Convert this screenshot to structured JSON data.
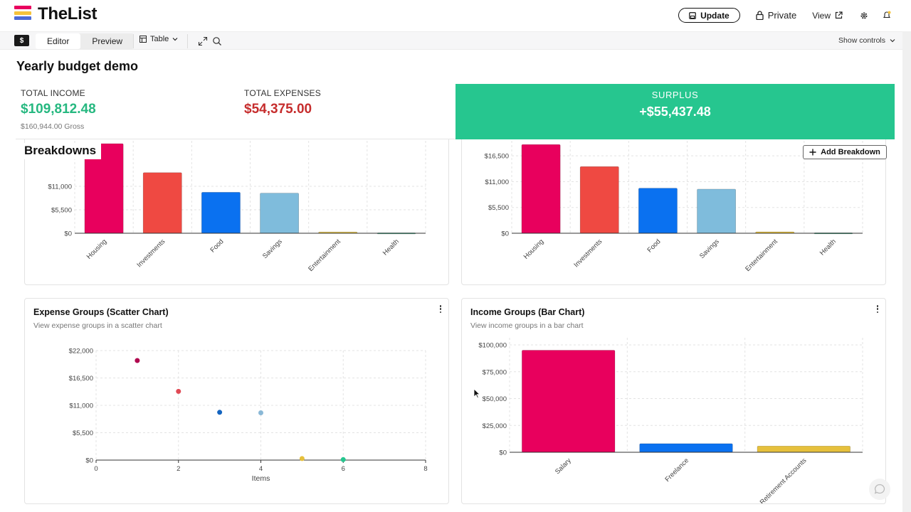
{
  "app": {
    "brand": "TheList",
    "logo_colors": [
      "#e9005e",
      "#f5c33b",
      "#4d6bd6"
    ]
  },
  "topbar": {
    "update_label": "Update",
    "private_label": "Private",
    "view_label": "View",
    "icons": [
      "save-icon",
      "lock-icon",
      "external-link-icon",
      "gear-icon",
      "bell-icon"
    ]
  },
  "toolbar": {
    "currency_badge": "$",
    "tabs": [
      {
        "label": "Editor",
        "active": true
      },
      {
        "label": "Preview",
        "active": false
      }
    ],
    "view_select": "Table",
    "show_controls": "Show controls"
  },
  "page": {
    "title": "Yearly budget demo"
  },
  "summary": {
    "income_label": "TOTAL INCOME",
    "income_value": "$109,812.48",
    "income_gross": "$160,944.00 Gross",
    "expenses_label": "TOTAL EXPENSES",
    "expenses_value": "$54,375.00",
    "surplus_label": "SURPLUS",
    "surplus_value": "+$55,437.48",
    "colors": {
      "income": "#26b880",
      "expenses": "#c62d2d",
      "surplus_bg": "#26c68f"
    }
  },
  "breakdowns": {
    "heading": "Breakdowns",
    "add_label": "Add Breakdown"
  },
  "chart_data": [
    {
      "type": "bar",
      "title": "",
      "categories": [
        "Housing",
        "Investments",
        "Food",
        "Savings",
        "Entertainment",
        "Health"
      ],
      "values": [
        21000,
        14200,
        9600,
        9400,
        300,
        100
      ],
      "colors": [
        "#e8005d",
        "#ef4942",
        "#0a71f0",
        "#7fbcdc",
        "#e6c03c",
        "#26c68f"
      ],
      "yticks": [
        "$0",
        "$5,500",
        "$11,000"
      ],
      "ylim": [
        0,
        22000
      ],
      "grid": true
    },
    {
      "type": "bar",
      "title": "",
      "categories": [
        "Housing",
        "Investments",
        "Food",
        "Savings",
        "Entertainment",
        "Health"
      ],
      "values": [
        18900,
        14200,
        9600,
        9400,
        300,
        100
      ],
      "colors": [
        "#e8005d",
        "#ef4942",
        "#0a71f0",
        "#7fbcdc",
        "#e6c03c",
        "#26c68f"
      ],
      "yticks": [
        "$0",
        "$5,500",
        "$11,000",
        "$16,500"
      ],
      "ylim": [
        0,
        20000
      ],
      "grid": true
    },
    {
      "type": "scatter",
      "title": "Expense Groups (Scatter Chart)",
      "subtitle": "View expense groups in a scatter chart",
      "xlabel": "Items",
      "x": [
        1,
        2,
        3,
        4,
        5,
        6
      ],
      "y": [
        20000,
        13800,
        9600,
        9500,
        300,
        100
      ],
      "colors": [
        "#b0084f",
        "#e04a55",
        "#1565c0",
        "#8ab8d6",
        "#e6c03c",
        "#26c68f"
      ],
      "xticks": [
        "0",
        "2",
        "4",
        "6",
        "8"
      ],
      "yticks": [
        "$0",
        "$5,500",
        "$11,000",
        "$16,500",
        "$22,000"
      ],
      "xlim": [
        0,
        8
      ],
      "ylim": [
        0,
        22000
      ],
      "grid": true
    },
    {
      "type": "bar",
      "title": "Income Groups (Bar Chart)",
      "subtitle": "View income groups in a bar chart",
      "categories": [
        "Salary",
        "Freelance",
        "Retirement Accounts"
      ],
      "values": [
        95000,
        8000,
        5800
      ],
      "colors": [
        "#e8005d",
        "#0a71f0",
        "#e6c03c"
      ],
      "yticks": [
        "$0",
        "$25,000",
        "$50,000",
        "$75,000",
        "$100,000"
      ],
      "ylim": [
        0,
        100000
      ],
      "grid": true
    }
  ]
}
